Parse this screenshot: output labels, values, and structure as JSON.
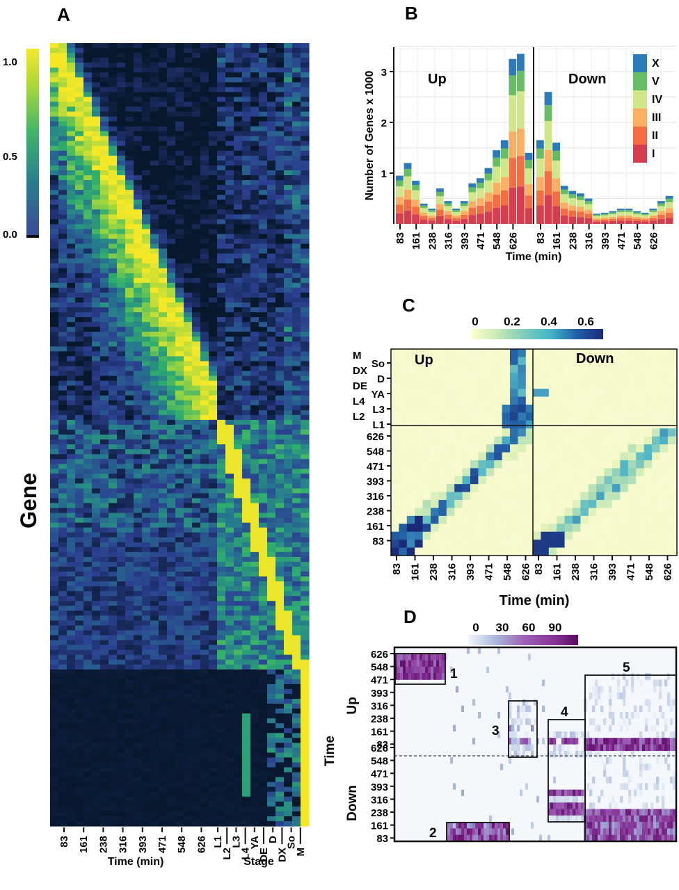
{
  "colors": {
    "viridis": [
      "#440154",
      "#3b528b",
      "#21908c",
      "#5dc863",
      "#fde725"
    ],
    "stage_colors": {
      "I": "#d53e4f",
      "II": "#f46d43",
      "III": "#fdae61",
      "IV": "#d0e88a",
      "V": "#66bd63",
      "X": "#2b7bba"
    },
    "ylgnbu": [
      "#ffffcc",
      "#c7e9b4",
      "#7fcdbb",
      "#41b6c4",
      "#1d91c0",
      "#225ea8",
      "#0c2c84"
    ],
    "bupu": [
      "#f7fbff",
      "#bcc6e0",
      "#8c6bb1",
      "#88419d",
      "#6e016b"
    ]
  },
  "panels": {
    "A": {
      "letter": "A",
      "ylabel": "Gene",
      "xlabel_time": "Time (min)",
      "xlabel_stage": "Stage"
    },
    "B": {
      "letter": "B",
      "ylabel": "Number of Genes x 1000",
      "xlabel": "Time (min)",
      "up_label": "Up",
      "down_label": "Down"
    },
    "C": {
      "letter": "C",
      "xlabel": "Time (min)",
      "up_label": "Up",
      "down_label": "Down"
    },
    "D": {
      "letter": "D",
      "ylabel_time": "Time",
      "up_label": "Up",
      "down_label": "Down"
    }
  },
  "chart_data": [
    {
      "panel": "A",
      "type": "heatmap",
      "ylabel": "Gene",
      "time_ticks": [
        "83",
        "161",
        "238",
        "316",
        "393",
        "471",
        "548",
        "626"
      ],
      "stage_ticks": [
        "L1",
        "L2",
        "L3",
        "L4",
        "YA",
        "DE",
        "D",
        "DX",
        "So",
        "M"
      ],
      "colorbar": {
        "ticks": [
          "0.0",
          "0.5",
          "1.0"
        ],
        "range": [
          0,
          1
        ]
      }
    },
    {
      "panel": "B",
      "type": "bar",
      "stacked": true,
      "ylabel": "Number of Genes x 1000",
      "xlabel": "Time (min)",
      "ylim": [
        0,
        3.5
      ],
      "yticks": [
        "1",
        "2",
        "3"
      ],
      "xtick_labels": [
        "83",
        "161",
        "238",
        "316",
        "393",
        "471",
        "548",
        "626"
      ],
      "legend": [
        "X",
        "V",
        "IV",
        "III",
        "II",
        "I"
      ],
      "legend_position": "top-right",
      "up_totals": [
        0.95,
        1.2,
        0.85,
        0.4,
        0.3,
        0.7,
        0.45,
        0.3,
        0.45,
        0.8,
        0.9,
        1.1,
        1.45,
        1.65,
        3.25,
        3.35,
        1.4
      ],
      "down_totals": [
        1.65,
        2.6,
        1.6,
        0.75,
        0.65,
        0.6,
        0.5,
        0.2,
        0.22,
        0.25,
        0.3,
        0.3,
        0.25,
        0.22,
        0.3,
        0.45,
        0.55
      ]
    },
    {
      "panel": "C",
      "type": "heatmap",
      "xlabel": "Time (min)",
      "colorbar": {
        "ticks": [
          "0",
          "0.2",
          "0.4",
          "0.6"
        ],
        "range": [
          0,
          0.7
        ]
      },
      "row_time_ticks": [
        "626",
        "548",
        "471",
        "393",
        "316",
        "238",
        "161",
        "83"
      ],
      "row_stage_ticks_left": [
        "M",
        "DX",
        "DE",
        "L4",
        "L2"
      ],
      "row_stage_ticks_right": [
        "So",
        "D",
        "YA",
        "L3",
        "L1"
      ],
      "col_ticks": [
        "83",
        "161",
        "238",
        "316",
        "393",
        "471",
        "548",
        "626"
      ]
    },
    {
      "panel": "D",
      "type": "heatmap",
      "colorbar": {
        "ticks": [
          "0",
          "30",
          "60",
          "90"
        ],
        "range": [
          0,
          110
        ]
      },
      "up_ticks": [
        "626",
        "548",
        "471",
        "393",
        "316",
        "238",
        "161",
        "83"
      ],
      "down_ticks": [
        "626",
        "548",
        "471",
        "393",
        "316",
        "238",
        "161",
        "83"
      ],
      "box_labels": [
        "1",
        "2",
        "3",
        "4",
        "5"
      ]
    }
  ]
}
